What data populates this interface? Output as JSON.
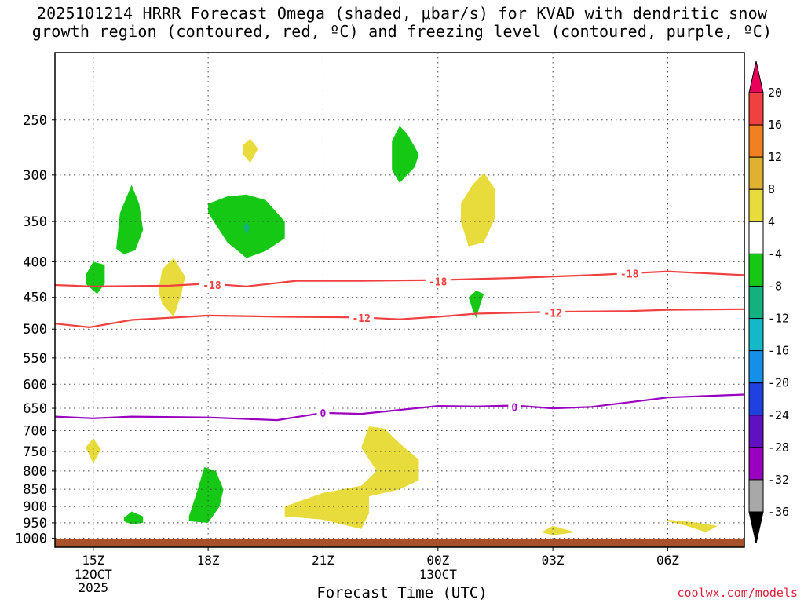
{
  "chart_data": {
    "type": "time-height contour",
    "title_lines": [
      "2025101214 HRRR Forecast Omega (shaded, μbar/s) for KVAD with dendritic snow",
      "growth region (contoured, red, ºC) and freezing level (contoured, purple, ºC)"
    ],
    "xlabel": "Forecast Time (UTC)",
    "x_ticks": [
      {
        "hour": 15,
        "label": "15Z",
        "sub": [
          "12OCT",
          "2025"
        ]
      },
      {
        "hour": 18,
        "label": "18Z",
        "sub": []
      },
      {
        "hour": 21,
        "label": "21Z",
        "sub": []
      },
      {
        "hour": 24,
        "label": "00Z",
        "sub": [
          "13OCT"
        ]
      },
      {
        "hour": 27,
        "label": "03Z",
        "sub": []
      },
      {
        "hour": 30,
        "label": "06Z",
        "sub": []
      }
    ],
    "xlim": [
      14,
      32
    ],
    "y_scale": "log-pressure",
    "ylim": [
      1030,
      200
    ],
    "y_ticks": [
      250,
      300,
      350,
      400,
      450,
      500,
      550,
      600,
      650,
      700,
      750,
      800,
      850,
      900,
      950,
      1000
    ],
    "ground_top": 1003,
    "colorbar": {
      "levels": [
        "20",
        "16",
        "12",
        "8",
        "4",
        "-4",
        "-8",
        "-12",
        "-16",
        "-20",
        "-24",
        "-28",
        "-32",
        "-36"
      ],
      "colors": [
        "#e8005a",
        "#f04040",
        "#f08020",
        "#e0b030",
        "#e8dc3c",
        "#ffffff",
        "#14c814",
        "#14b080",
        "#14b8c8",
        "#1490e8",
        "#2040e0",
        "#6010c0",
        "#9a00c0",
        "#a8a8a8",
        "#000000"
      ]
    },
    "contours": [
      {
        "value": "-18",
        "color": "#f04040",
        "points": [
          [
            14,
            432
          ],
          [
            15,
            434
          ],
          [
            17,
            433
          ],
          [
            18,
            430
          ],
          [
            19,
            434
          ],
          [
            20.3,
            426
          ],
          [
            22,
            426
          ],
          [
            24,
            425
          ],
          [
            26,
            422
          ],
          [
            28,
            418
          ],
          [
            30,
            413
          ],
          [
            32,
            418
          ]
        ],
        "labels": [
          [
            18.1,
            432
          ],
          [
            24,
            427
          ],
          [
            29,
            416
          ]
        ]
      },
      {
        "value": "-12",
        "color": "#f04040",
        "points": [
          [
            14,
            491
          ],
          [
            14.9,
            497
          ],
          [
            16,
            485
          ],
          [
            18,
            478
          ],
          [
            20,
            480
          ],
          [
            22,
            481
          ],
          [
            23,
            484
          ],
          [
            24,
            480
          ],
          [
            25,
            475
          ],
          [
            27,
            472
          ],
          [
            29,
            471
          ],
          [
            30,
            469
          ],
          [
            32,
            468
          ]
        ],
        "labels": [
          [
            22,
            482
          ],
          [
            27,
            474
          ]
        ]
      },
      {
        "value": "0",
        "color": "#9a00c0",
        "points": [
          [
            14,
            668
          ],
          [
            15,
            672
          ],
          [
            16,
            668
          ],
          [
            18,
            670
          ],
          [
            19.8,
            676
          ],
          [
            21,
            660
          ],
          [
            22,
            662
          ],
          [
            24,
            645
          ],
          [
            25,
            646
          ],
          [
            26,
            644
          ],
          [
            27,
            650
          ],
          [
            28,
            647
          ],
          [
            29,
            637
          ],
          [
            30,
            627
          ],
          [
            32,
            621
          ]
        ],
        "labels": [
          [
            21,
            660
          ],
          [
            26,
            647
          ]
        ]
      }
    ],
    "omega_regions": [
      {
        "level": "-4",
        "color": "#14c814",
        "points": [
          [
            15.6,
            383
          ],
          [
            15.7,
            340
          ],
          [
            16.0,
            310
          ],
          [
            16.2,
            330
          ],
          [
            16.3,
            360
          ],
          [
            16.1,
            385
          ],
          [
            15.8,
            390
          ]
        ]
      },
      {
        "level": "-4",
        "color": "#14c814",
        "points": [
          [
            14.8,
            418
          ],
          [
            15.0,
            400
          ],
          [
            15.3,
            404
          ],
          [
            15.3,
            430
          ],
          [
            15.1,
            445
          ],
          [
            14.8,
            430
          ]
        ]
      },
      {
        "level": "-4",
        "color": "#14c814",
        "points": [
          [
            18.0,
            330
          ],
          [
            18.5,
            322
          ],
          [
            19.0,
            320
          ],
          [
            19.5,
            326
          ],
          [
            20.0,
            350
          ],
          [
            20.0,
            370
          ],
          [
            19.5,
            386
          ],
          [
            19.0,
            395
          ],
          [
            18.5,
            375
          ],
          [
            18.0,
            340
          ]
        ]
      },
      {
        "level": "-4",
        "color": "#14c814",
        "points": [
          [
            22.8,
            268
          ],
          [
            23.0,
            255
          ],
          [
            23.2,
            262
          ],
          [
            23.5,
            280
          ],
          [
            23.4,
            292
          ],
          [
            23.0,
            308
          ],
          [
            22.8,
            295
          ]
        ]
      },
      {
        "level": "-4",
        "color": "#14c814",
        "points": [
          [
            24.8,
            450
          ],
          [
            25.0,
            440
          ],
          [
            25.2,
            445
          ],
          [
            25.1,
            462
          ],
          [
            25.0,
            482
          ],
          [
            24.9,
            468
          ]
        ]
      },
      {
        "level": "-4",
        "color": "#14c814",
        "points": [
          [
            17.5,
            930
          ],
          [
            17.7,
            860
          ],
          [
            17.9,
            790
          ],
          [
            18.2,
            800
          ],
          [
            18.4,
            850
          ],
          [
            18.3,
            900
          ],
          [
            18.0,
            950
          ],
          [
            17.5,
            945
          ]
        ]
      },
      {
        "level": "-4",
        "color": "#14c814",
        "points": [
          [
            15.8,
            935
          ],
          [
            16.0,
            915
          ],
          [
            16.3,
            930
          ],
          [
            16.3,
            950
          ],
          [
            16.0,
            955
          ],
          [
            15.8,
            945
          ]
        ]
      },
      {
        "level": "-8",
        "color": "#14b080",
        "points": [
          [
            18.92,
            357
          ],
          [
            19.0,
            350
          ],
          [
            19.08,
            357
          ],
          [
            19.0,
            366
          ]
        ]
      },
      {
        "level": "4",
        "color": "#e8dc3c",
        "points": [
          [
            18.9,
            272
          ],
          [
            19.1,
            266
          ],
          [
            19.3,
            275
          ],
          [
            19.1,
            288
          ],
          [
            18.9,
            280
          ]
        ]
      },
      {
        "level": "4",
        "color": "#e8dc3c",
        "points": [
          [
            16.7,
            440
          ],
          [
            16.8,
            410
          ],
          [
            17.1,
            395
          ],
          [
            17.4,
            420
          ],
          [
            17.3,
            445
          ],
          [
            17.1,
            480
          ],
          [
            16.8,
            460
          ]
        ]
      },
      {
        "level": "4",
        "color": "#e8dc3c",
        "points": [
          [
            24.6,
            330
          ],
          [
            24.9,
            310
          ],
          [
            25.2,
            298
          ],
          [
            25.5,
            315
          ],
          [
            25.5,
            345
          ],
          [
            25.2,
            375
          ],
          [
            24.8,
            380
          ],
          [
            24.6,
            350
          ]
        ]
      },
      {
        "level": "4",
        "color": "#e8dc3c",
        "points": [
          [
            14.8,
            740
          ],
          [
            15.0,
            718
          ],
          [
            15.2,
            745
          ],
          [
            15.0,
            780
          ]
        ]
      },
      {
        "level": "4",
        "color": "#e8dc3c",
        "points": [
          [
            20.0,
            920
          ],
          [
            20.0,
            900
          ],
          [
            21.0,
            860
          ],
          [
            22.0,
            840
          ],
          [
            22.4,
            800
          ],
          [
            22.0,
            740
          ],
          [
            22.2,
            690
          ],
          [
            22.6,
            695
          ],
          [
            23.0,
            730
          ],
          [
            23.5,
            770
          ],
          [
            23.5,
            825
          ],
          [
            23.0,
            850
          ],
          [
            22.2,
            870
          ],
          [
            22.2,
            920
          ],
          [
            22.0,
            970
          ],
          [
            21.0,
            940
          ],
          [
            20.0,
            930
          ]
        ]
      },
      {
        "level": "4",
        "color": "#e8dc3c",
        "points": [
          [
            26.7,
            980
          ],
          [
            27.0,
            960
          ],
          [
            27.6,
            980
          ],
          [
            27.0,
            990
          ]
        ]
      },
      {
        "level": "4",
        "color": "#e8dc3c",
        "points": [
          [
            30.0,
            940
          ],
          [
            30.8,
            950
          ],
          [
            31.3,
            960
          ],
          [
            31.0,
            980
          ],
          [
            30.5,
            960
          ],
          [
            30.0,
            945
          ]
        ]
      }
    ]
  },
  "credit": "coolwx.com/models"
}
